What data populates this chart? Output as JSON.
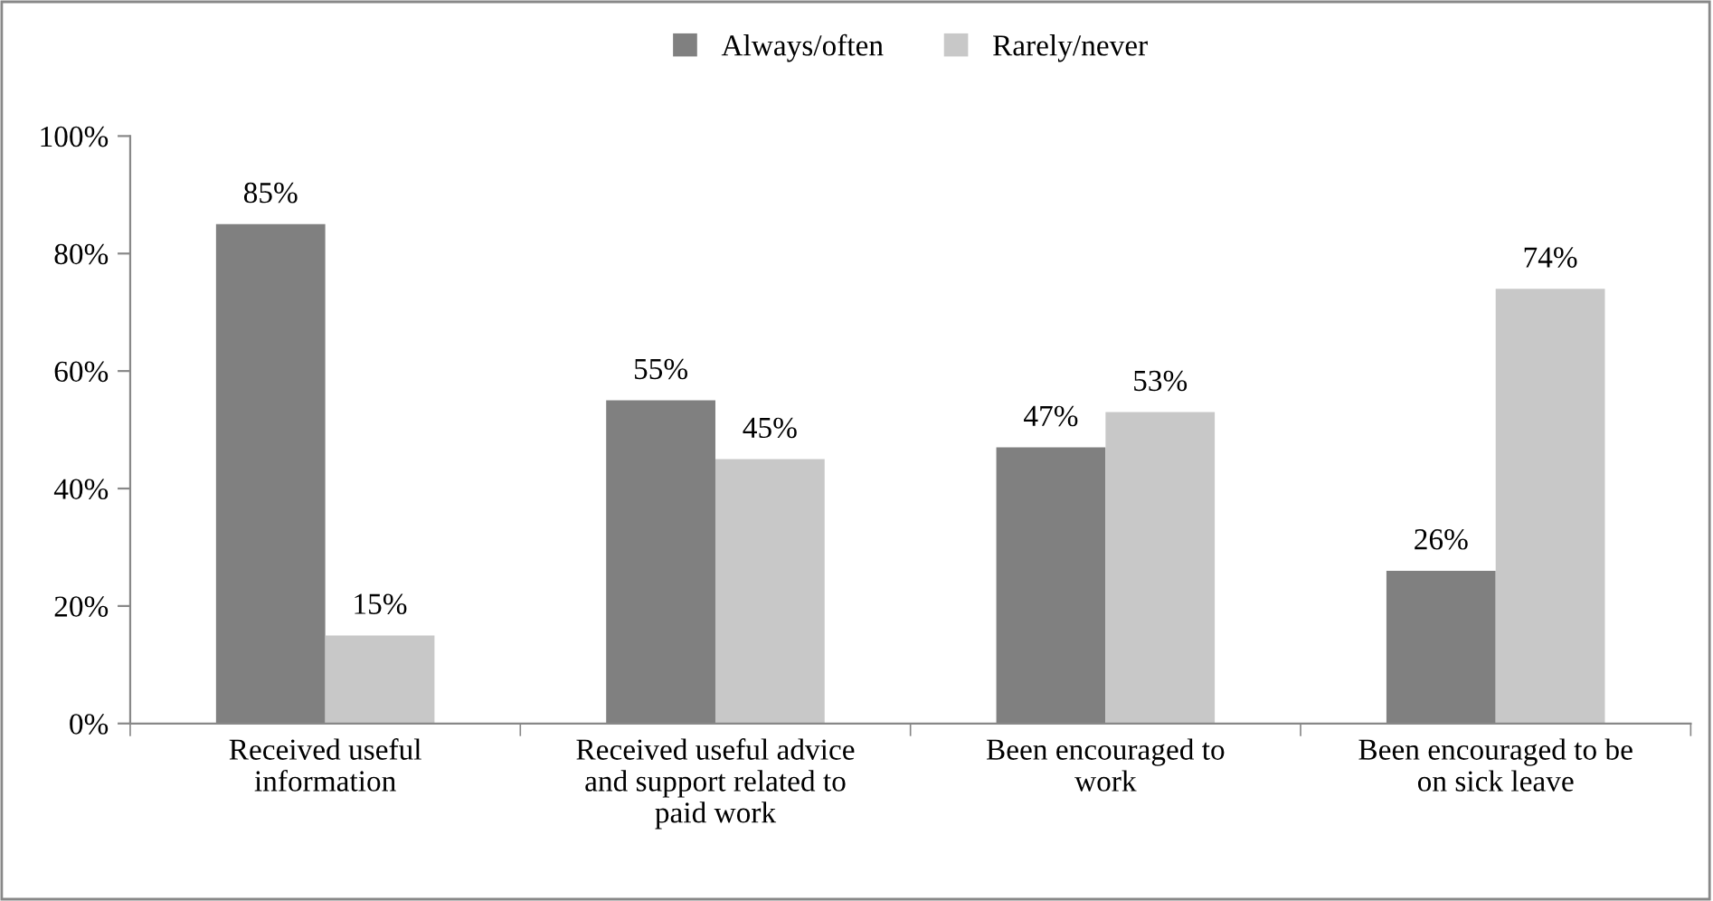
{
  "chart_data": {
    "type": "bar",
    "categories": [
      "Received useful\ninformation",
      "Received useful advice\nand support related to\npaid work",
      "Been encouraged to\nwork",
      "Been encouraged to be\non sick leave"
    ],
    "series": [
      {
        "name": "Always/often",
        "color": "#808080",
        "values": [
          85,
          55,
          47,
          26
        ],
        "value_labels": [
          "85%",
          "55%",
          "47%",
          "26%"
        ]
      },
      {
        "name": "Rarely/never",
        "color": "#c8c8c8",
        "values": [
          15,
          45,
          53,
          74
        ],
        "value_labels": [
          "15%",
          "45%",
          "53%",
          "74%"
        ]
      }
    ],
    "ylim": [
      0,
      100
    ],
    "yticks": [
      {
        "value": 0,
        "label": "0%"
      },
      {
        "value": 20,
        "label": "20%"
      },
      {
        "value": 40,
        "label": "40%"
      },
      {
        "value": 60,
        "label": "60%"
      },
      {
        "value": 80,
        "label": "80%"
      },
      {
        "value": 100,
        "label": "100%"
      }
    ],
    "grid": false,
    "legend": "top"
  }
}
